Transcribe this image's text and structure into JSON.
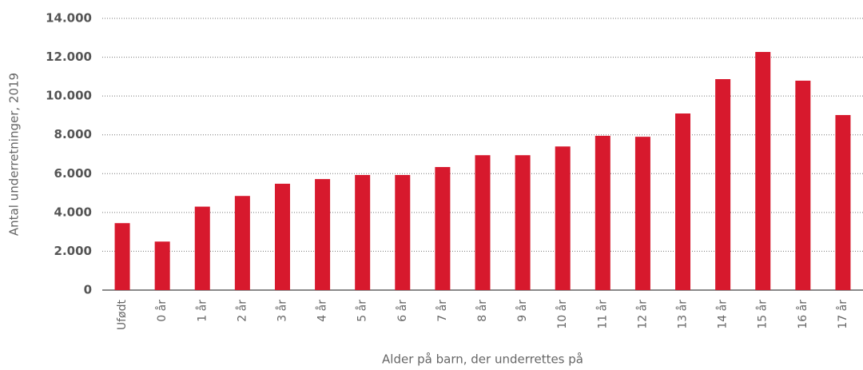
{
  "chart_data": {
    "type": "bar",
    "xlabel": "Alder på barn, der underrettes på",
    "ylabel": "Antal underretninger, 2019",
    "categories": [
      "Ufødt",
      "0 år",
      "1 år",
      "2 år",
      "3 år",
      "4 år",
      "5 år",
      "6 år",
      "7 år",
      "8 år",
      "9 år",
      "10 år",
      "11 år",
      "12 år",
      "13 år",
      "14 år",
      "15 år",
      "16 år",
      "17 år"
    ],
    "values": [
      3450,
      2500,
      4300,
      4850,
      5480,
      5720,
      5930,
      5930,
      6340,
      6950,
      6950,
      7400,
      7950,
      7900,
      9100,
      10870,
      12270,
      10790,
      9020
    ],
    "color": "#d7192d",
    "ylim": [
      0,
      14000
    ],
    "yticks": [
      0,
      {
        "value": 2000,
        "label": "2.000"
      },
      {
        "value": 4000,
        "label": "4.000"
      },
      {
        "value": 6000,
        "label": "6.000"
      },
      {
        "value": 8000,
        "label": "8.000"
      },
      {
        "value": 10000,
        "label": "10.000"
      },
      {
        "value": 12000,
        "label": "12.000"
      },
      {
        "value": 14000,
        "label": "14.000"
      }
    ],
    "grid": true
  }
}
